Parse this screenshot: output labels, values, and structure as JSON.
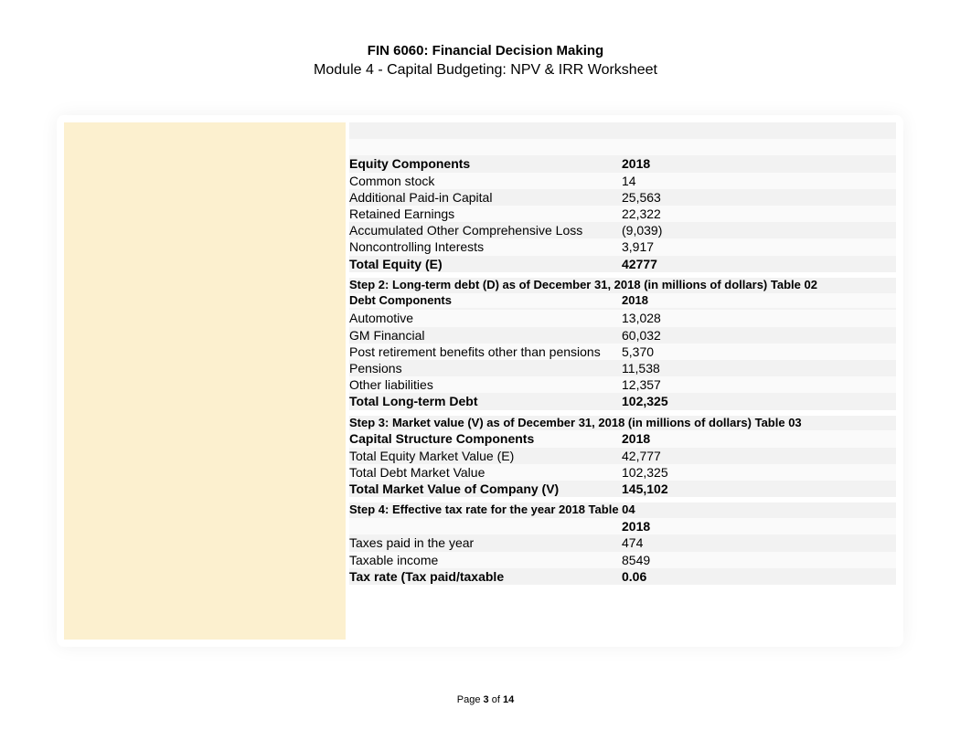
{
  "header": {
    "course": "FIN 6060: Financial Decision Making",
    "module": "Module 4 - Capital Budgeting: NPV & IRR Worksheet"
  },
  "colors": {
    "left_panel": "#fcf0cf",
    "row_alt_a": "#f2f2f2",
    "row_alt_b": "#fafafa",
    "page_bg": "#ffffff",
    "text": "#000000"
  },
  "equity": {
    "header_label": "Equity Components",
    "header_year": "2018",
    "rows": [
      {
        "label": "Common stock",
        "value": "14"
      },
      {
        "label": "Additional Paid-in Capital",
        "value": "25,563"
      },
      {
        "label": "Retained Earnings",
        "value": "22,322"
      },
      {
        "label": "Accumulated Other Comprehensive Loss",
        "value": "(9,039)"
      },
      {
        "label": "Noncontrolling Interests",
        "value": "3,917"
      }
    ],
    "total_label": "Total Equity (E)",
    "total_value": "42777"
  },
  "step2": {
    "title": "Step 2: Long-term debt (D) as of December 31, 2018 (in millions of dollars) Table 02",
    "header_label": "Debt Components",
    "header_year": "2018",
    "rows": [
      {
        "label": "Automotive",
        "value": "13,028"
      },
      {
        "label": "GM Financial",
        "value": "60,032"
      },
      {
        "label": "Post retirement benefits other than pensions",
        "value": "5,370"
      },
      {
        "label": "Pensions",
        "value": "11,538"
      },
      {
        "label": "Other liabilities",
        "value": "12,357"
      }
    ],
    "total_label": "Total Long-term Debt",
    "total_value": "102,325"
  },
  "step3": {
    "title": "Step 3: Market value (V) as of December 31, 2018 (in millions of dollars) Table 03",
    "header_label": "Capital Structure Components",
    "header_year": "2018",
    "rows": [
      {
        "label": "Total Equity Market Value (E)",
        "value": "42,777"
      },
      {
        "label": "Total Debt Market Value",
        "value": "102,325"
      }
    ],
    "total_label": "Total Market Value of Company (V)",
    "total_value": "145,102"
  },
  "step4": {
    "title": "Step 4: Effective tax rate for the year 2018 Table 04",
    "header_label": "",
    "header_year": "2018",
    "rows": [
      {
        "label": "Taxes paid in the year",
        "value": "474"
      },
      {
        "label": "Taxable income",
        "value": "8549"
      }
    ],
    "total_label": "Tax rate (Tax paid/taxable",
    "total_value": "0.06"
  },
  "footer": {
    "prefix": "Page ",
    "page": "3",
    "of": " of ",
    "total": "14"
  }
}
